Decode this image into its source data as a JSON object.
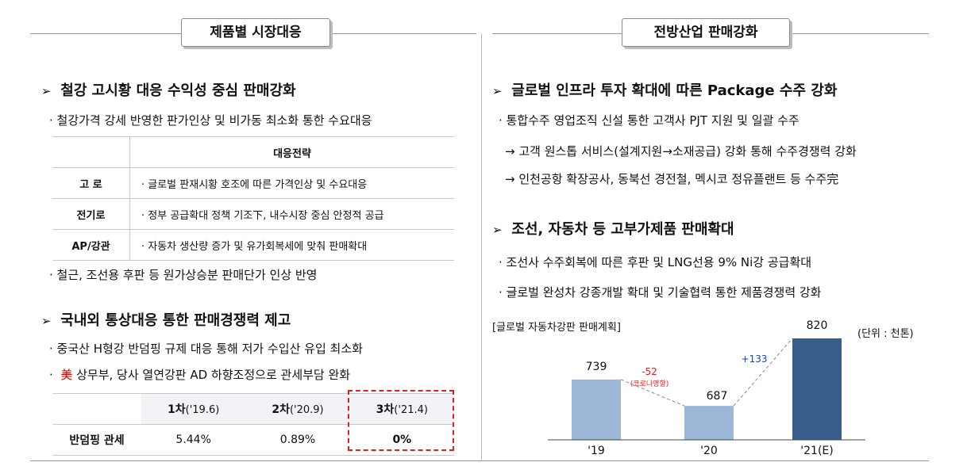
{
  "left": {
    "tab_title": "제품별 시장대응",
    "section1": {
      "heading": "철강 고시황 대응 수익성 중심 판매강화",
      "bullet1": "· 철강가격 강세 반영한 판가인상 및 비가동 최소화 통한 수요대응",
      "table_header": "대응전략",
      "rows": [
        {
          "label": "고  로",
          "text": "· 글로벌 판재시황 호조에 따른 가격인상 및 수요대응"
        },
        {
          "label": "전기로",
          "text": "· 정부 공급확대 정책 기조下, 내수시장 중심 안정적 공급"
        },
        {
          "label": "AP/강관",
          "text": "· 자동차 생산량 증가 및 유가회복세에 맞춰 판매확대"
        }
      ],
      "bullet2": "·  철근, 조선용 후판 등 원가상승분 판매단가 인상 반영"
    },
    "section2": {
      "heading": "국내외 통상대응 통한 판매경쟁력 제고",
      "bullet1": "·  중국산 H형강 반덤핑 규제 대응 통해 저가 수입산 유입 최소화",
      "bullet2_prefix": "·  ",
      "bullet2_hanja": "美",
      "bullet2_rest": " 상무부, 당사 열연강판 AD 하향조정으로 관세부담 완화",
      "table": {
        "cols": [
          {
            "main": "1차",
            "sub": "('19.6)"
          },
          {
            "main": "2차",
            "sub": "('20.9)"
          },
          {
            "main": "3차",
            "sub": "('21.4)"
          }
        ],
        "row_label": "반덤핑 관세",
        "values": [
          "5.44%",
          "0.89%",
          "0%"
        ]
      }
    }
  },
  "right": {
    "tab_title": "전방산업 판매강화",
    "section1": {
      "heading": "글로벌 인프라 투자 확대에 따른 Package 수주 강화",
      "bullet1": "·  통합수주 영업조직 신설 통한 고객사 PJT 지원 및 일괄 수주",
      "arrow1": "→ 고객 원스톱 서비스(설계지원→소재공급) 강화 통해 수주경쟁력 강화",
      "arrow2": "→ 인천공항 확장공사, 동북선 경전철, 멕시코 정유플랜트 등 수주完"
    },
    "section2": {
      "heading": "조선, 자동차 등 고부가제품 판매확대",
      "bullet1": "·  조선사 수주회복에 따른 후판 및 LNG선용 9% Ni강 공급확대",
      "bullet2": "·  글로벌 완성차 강종개발 확대 및 기술협력 통한 제품경쟁력 강화"
    }
  },
  "chart_data": {
    "type": "bar",
    "title": "[글로벌 자동차강판 판매계획]",
    "unit": "(단위 : 천톤)",
    "categories": [
      "'19",
      "'20",
      "'21(E)"
    ],
    "values": [
      739,
      687,
      820
    ],
    "value_labels": [
      "739",
      "687",
      "820"
    ],
    "colors": [
      "#9db7d9",
      "#9db7d9",
      "#3a5e8c"
    ],
    "annotations": [
      {
        "text": "-52",
        "sub": "(코로나영향)",
        "color": "#e02020"
      },
      {
        "text": "+133",
        "color": "#2040c0"
      }
    ]
  }
}
